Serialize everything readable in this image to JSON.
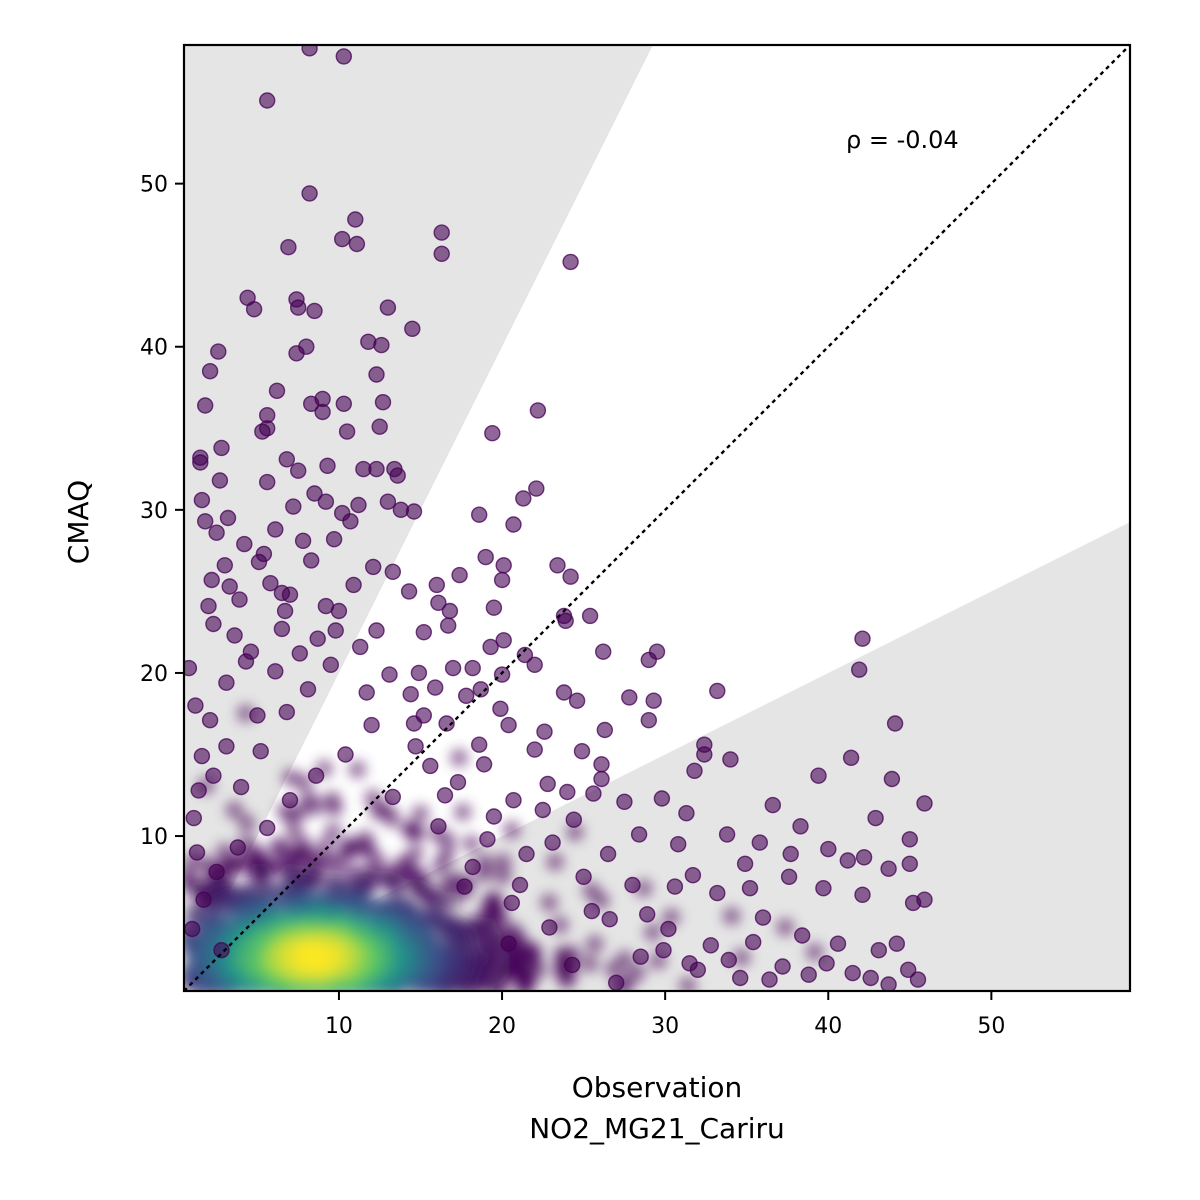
{
  "chart_data": {
    "type": "scatter",
    "title": "",
    "xlabel": "Observation",
    "xlabel_line2": "NO2_MG21_Cariru",
    "ylabel": "CMAQ",
    "annotation": "ρ = -0.04",
    "xlim": [
      0.5,
      58.5
    ],
    "ylim": [
      0.5,
      58.5
    ],
    "xticks": [
      10,
      20,
      30,
      40,
      50
    ],
    "yticks": [
      10,
      20,
      30,
      40,
      50
    ],
    "grid": false,
    "legend": "none",
    "identity_line": true,
    "factor_bands": [
      {
        "slope_low": 0.0,
        "slope_high": 0.5,
        "color": "#e5e5e5"
      },
      {
        "slope_low": 2.0,
        "slope_high": 1000,
        "color": "#e5e5e5"
      }
    ],
    "colormap": "viridis",
    "colors": {
      "low_density": "#440154",
      "mid_density": "#21918c",
      "high_density": "#fde725",
      "band": "#e5e5e5"
    },
    "density_cluster": {
      "center": [
        8.5,
        2.6
      ],
      "spread": [
        3.5,
        1.4
      ]
    },
    "points": [
      [
        8.2,
        58.3
      ],
      [
        10.3,
        57.8
      ],
      [
        5.6,
        55.1
      ],
      [
        8.2,
        49.4
      ],
      [
        11.0,
        47.8
      ],
      [
        16.3,
        47.0
      ],
      [
        10.2,
        46.6
      ],
      [
        11.1,
        46.3
      ],
      [
        6.9,
        46.1
      ],
      [
        16.3,
        45.7
      ],
      [
        24.2,
        45.2
      ],
      [
        4.4,
        43.0
      ],
      [
        7.4,
        42.9
      ],
      [
        4.8,
        42.3
      ],
      [
        7.5,
        42.4
      ],
      [
        8.5,
        42.2
      ],
      [
        13.0,
        42.4
      ],
      [
        14.5,
        41.1
      ],
      [
        11.8,
        40.3
      ],
      [
        12.6,
        40.1
      ],
      [
        8.0,
        40.0
      ],
      [
        2.6,
        39.7
      ],
      [
        7.4,
        39.6
      ],
      [
        2.1,
        38.5
      ],
      [
        12.3,
        38.3
      ],
      [
        6.2,
        37.3
      ],
      [
        10.3,
        36.5
      ],
      [
        12.7,
        36.6
      ],
      [
        8.3,
        36.5
      ],
      [
        1.8,
        36.4
      ],
      [
        9.0,
        36.8
      ],
      [
        22.2,
        36.1
      ],
      [
        5.6,
        35.8
      ],
      [
        9.0,
        36.0
      ],
      [
        10.5,
        34.8
      ],
      [
        12.5,
        35.1
      ],
      [
        5.6,
        35.0
      ],
      [
        5.3,
        34.8
      ],
      [
        19.4,
        34.7
      ],
      [
        2.8,
        33.8
      ],
      [
        1.5,
        33.2
      ],
      [
        6.8,
        33.1
      ],
      [
        7.5,
        32.4
      ],
      [
        11.5,
        32.5
      ],
      [
        12.3,
        32.5
      ],
      [
        13.4,
        32.5
      ],
      [
        1.5,
        32.9
      ],
      [
        9.3,
        32.7
      ],
      [
        13.6,
        32.1
      ],
      [
        2.7,
        31.8
      ],
      [
        5.6,
        31.7
      ],
      [
        22.1,
        31.3
      ],
      [
        8.5,
        31.0
      ],
      [
        1.6,
        30.6
      ],
      [
        13.0,
        30.5
      ],
      [
        21.3,
        30.7
      ],
      [
        9.2,
        30.5
      ],
      [
        11.2,
        30.3
      ],
      [
        7.2,
        30.2
      ],
      [
        13.8,
        30.0
      ],
      [
        14.6,
        29.9
      ],
      [
        18.6,
        29.7
      ],
      [
        10.2,
        29.8
      ],
      [
        3.2,
        29.5
      ],
      [
        1.8,
        29.3
      ],
      [
        10.7,
        29.3
      ],
      [
        20.7,
        29.1
      ],
      [
        6.1,
        28.8
      ],
      [
        9.7,
        28.2
      ],
      [
        2.5,
        28.6
      ],
      [
        7.8,
        28.1
      ],
      [
        5.4,
        27.3
      ],
      [
        19.0,
        27.1
      ],
      [
        23.4,
        26.6
      ],
      [
        20.1,
        26.6
      ],
      [
        3.0,
        26.6
      ],
      [
        13.3,
        26.2
      ],
      [
        24.2,
        25.9
      ],
      [
        2.2,
        25.7
      ],
      [
        17.4,
        26.0
      ],
      [
        20.0,
        25.7
      ],
      [
        16.0,
        25.4
      ],
      [
        14.3,
        25.0
      ],
      [
        6.5,
        24.9
      ],
      [
        7.0,
        24.8
      ],
      [
        3.9,
        24.5
      ],
      [
        2.0,
        24.1
      ],
      [
        10.0,
        23.8
      ],
      [
        16.1,
        24.3
      ],
      [
        16.8,
        23.8
      ],
      [
        23.8,
        23.5
      ],
      [
        25.4,
        23.5
      ],
      [
        19.5,
        24.0
      ],
      [
        2.3,
        23.0
      ],
      [
        6.5,
        22.7
      ],
      [
        12.3,
        22.6
      ],
      [
        16.7,
        22.9
      ],
      [
        15.2,
        22.5
      ],
      [
        23.9,
        23.2
      ],
      [
        20.1,
        22.0
      ],
      [
        8.7,
        22.1
      ],
      [
        19.3,
        21.6
      ],
      [
        21.4,
        21.1
      ],
      [
        4.6,
        21.3
      ],
      [
        26.2,
        21.3
      ],
      [
        18.2,
        20.3
      ],
      [
        29.5,
        21.3
      ],
      [
        29.0,
        20.8
      ],
      [
        0.8,
        20.3
      ],
      [
        20.0,
        19.9
      ],
      [
        17.0,
        20.3
      ],
      [
        22.0,
        20.5
      ],
      [
        14.9,
        20.0
      ],
      [
        18.7,
        19.0
      ],
      [
        23.8,
        18.8
      ],
      [
        14.4,
        18.7
      ],
      [
        27.8,
        18.5
      ],
      [
        24.6,
        18.3
      ],
      [
        29.3,
        18.3
      ],
      [
        33.2,
        18.9
      ],
      [
        1.2,
        18.0
      ],
      [
        19.9,
        17.8
      ],
      [
        15.2,
        17.4
      ],
      [
        16.6,
        16.9
      ],
      [
        20.4,
        16.8
      ],
      [
        29.0,
        17.1
      ],
      [
        22.6,
        16.4
      ],
      [
        26.3,
        16.5
      ],
      [
        32.4,
        15.6
      ],
      [
        18.6,
        15.6
      ],
      [
        22.0,
        15.3
      ],
      [
        32.4,
        15.0
      ],
      [
        24.9,
        15.2
      ],
      [
        14.7,
        15.5
      ],
      [
        26.1,
        14.4
      ],
      [
        41.4,
        14.8
      ],
      [
        31.8,
        14.0
      ],
      [
        34.0,
        14.7
      ],
      [
        39.4,
        13.7
      ],
      [
        43.9,
        13.5
      ],
      [
        24.0,
        12.7
      ],
      [
        25.6,
        12.6
      ],
      [
        36.6,
        11.9
      ],
      [
        45.9,
        12.0
      ],
      [
        38.3,
        10.6
      ],
      [
        42.9,
        11.1
      ],
      [
        44.1,
        16.9
      ],
      [
        42.1,
        22.1
      ],
      [
        41.9,
        20.2
      ],
      [
        45.0,
        9.8
      ],
      [
        40.0,
        9.2
      ],
      [
        45.0,
        8.3
      ],
      [
        42.2,
        8.7
      ],
      [
        43.7,
        8.0
      ],
      [
        41.2,
        8.5
      ],
      [
        45.2,
        5.9
      ],
      [
        45.9,
        6.1
      ],
      [
        39.7,
        6.8
      ],
      [
        42.1,
        6.4
      ],
      [
        44.2,
        3.4
      ],
      [
        43.1,
        3.0
      ],
      [
        45.5,
        1.2
      ],
      [
        43.7,
        0.9
      ],
      [
        38.8,
        1.5
      ],
      [
        40.6,
        3.4
      ],
      [
        37.6,
        7.5
      ],
      [
        35.2,
        6.8
      ],
      [
        33.2,
        6.5
      ],
      [
        36.0,
        5.0
      ],
      [
        34.6,
        1.3
      ],
      [
        32.0,
        1.8
      ],
      [
        28.5,
        2.6
      ],
      [
        30.2,
        4.3
      ],
      [
        31.7,
        7.6
      ],
      [
        33.8,
        10.1
      ],
      [
        35.8,
        9.6
      ],
      [
        30.8,
        9.5
      ],
      [
        28.4,
        10.1
      ],
      [
        27.5,
        12.1
      ],
      [
        26.1,
        13.5
      ],
      [
        22.8,
        13.2
      ],
      [
        24.4,
        11.0
      ],
      [
        26.5,
        8.9
      ],
      [
        28.0,
        7.0
      ],
      [
        30.6,
        6.9
      ],
      [
        25.5,
        5.4
      ],
      [
        22.9,
        4.4
      ],
      [
        20.6,
        5.9
      ],
      [
        21.5,
        8.9
      ],
      [
        19.5,
        11.2
      ],
      [
        17.3,
        13.3
      ],
      [
        15.6,
        14.3
      ],
      [
        13.3,
        12.4
      ],
      [
        16.1,
        10.6
      ],
      [
        18.2,
        8.1
      ],
      [
        20.4,
        3.4
      ],
      [
        17.7,
        6.9
      ],
      [
        24.3,
        2.1
      ],
      [
        27.0,
        1.0
      ],
      [
        35.4,
        3.5
      ],
      [
        37.2,
        2.0
      ],
      [
        41.5,
        1.6
      ],
      [
        44.9,
        1.8
      ],
      [
        34.9,
        8.3
      ],
      [
        38.4,
        3.9
      ],
      [
        31.3,
        11.4
      ],
      [
        29.8,
        12.3
      ],
      [
        37.7,
        8.9
      ],
      [
        1.4,
        12.8
      ],
      [
        1.1,
        11.1
      ],
      [
        1.6,
        14.9
      ],
      [
        2.1,
        17.1
      ],
      [
        3.1,
        19.4
      ],
      [
        3.6,
        22.3
      ],
      [
        4.3,
        20.7
      ],
      [
        5.1,
        26.8
      ],
      [
        5.8,
        25.5
      ],
      [
        4.2,
        27.9
      ],
      [
        3.3,
        25.3
      ],
      [
        6.7,
        23.8
      ],
      [
        7.6,
        21.2
      ],
      [
        9.2,
        24.1
      ],
      [
        10.9,
        25.4
      ],
      [
        12.1,
        26.5
      ],
      [
        8.3,
        26.9
      ],
      [
        9.8,
        22.6
      ],
      [
        11.3,
        21.6
      ],
      [
        6.1,
        20.1
      ],
      [
        5.0,
        17.4
      ],
      [
        3.1,
        15.5
      ],
      [
        2.3,
        13.7
      ],
      [
        4.0,
        13.0
      ],
      [
        5.2,
        15.2
      ],
      [
        6.8,
        17.6
      ],
      [
        8.1,
        19.0
      ],
      [
        9.5,
        20.5
      ],
      [
        11.7,
        18.8
      ],
      [
        13.1,
        19.9
      ],
      [
        12.0,
        16.8
      ],
      [
        10.4,
        15.0
      ],
      [
        8.6,
        13.7
      ],
      [
        7.0,
        12.2
      ],
      [
        5.6,
        10.5
      ],
      [
        3.8,
        9.3
      ],
      [
        2.5,
        7.8
      ],
      [
        1.7,
        6.1
      ],
      [
        1.0,
        4.3
      ],
      [
        2.8,
        3.0
      ],
      [
        1.3,
        9.0
      ],
      [
        14.6,
        16.9
      ],
      [
        15.9,
        19.1
      ],
      [
        17.8,
        18.6
      ],
      [
        16.5,
        12.5
      ],
      [
        18.9,
        14.4
      ],
      [
        20.7,
        12.2
      ],
      [
        22.5,
        11.6
      ],
      [
        19.1,
        9.8
      ],
      [
        21.1,
        7.0
      ],
      [
        23.1,
        9.6
      ],
      [
        25.0,
        7.5
      ],
      [
        26.6,
        4.9
      ],
      [
        28.9,
        5.2
      ],
      [
        29.9,
        3.0
      ],
      [
        32.8,
        3.3
      ],
      [
        31.5,
        2.2
      ],
      [
        33.9,
        2.4
      ],
      [
        36.4,
        1.2
      ],
      [
        39.9,
        2.2
      ],
      [
        42.6,
        1.3
      ]
    ]
  }
}
